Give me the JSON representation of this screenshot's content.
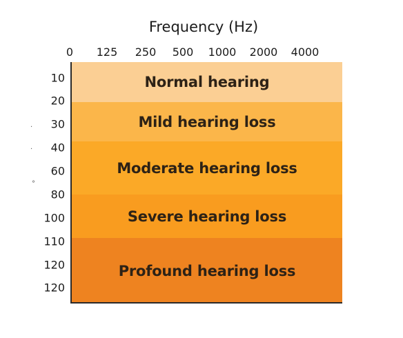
{
  "chart_data": {
    "type": "heatmap",
    "title": "Frequency (Hz)",
    "x_tick_labels": [
      "0",
      "125",
      "250",
      "500",
      "1000",
      "2000",
      "4000"
    ],
    "y_tick_labels": [
      "10",
      "20",
      "30",
      "40",
      "60",
      "80",
      "100",
      "110",
      "120",
      "120"
    ],
    "bands": [
      {
        "label": "Normal hearing",
        "color": "#fbcf94"
      },
      {
        "label": "Mild hearing loss",
        "color": "#fbb64a"
      },
      {
        "label": "Moderate hearing loss",
        "color": "#fba927"
      },
      {
        "label": "Severe hearing loss",
        "color": "#f99c1f"
      },
      {
        "label": "Profound hearing loss",
        "color": "#ee8320"
      }
    ],
    "grid": false,
    "legend": "none"
  }
}
